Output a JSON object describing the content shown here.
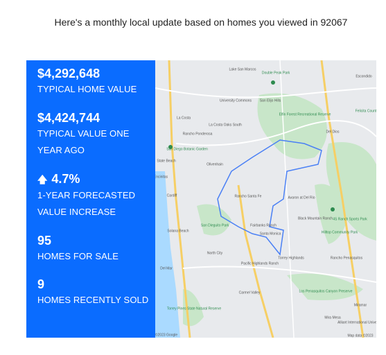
{
  "heading": "Here's a monthly local update based on homes you viewed in 92067",
  "stats": [
    {
      "value": "$4,292,648",
      "label": "TYPICAL HOME VALUE"
    },
    {
      "value": "$4,424,744",
      "label": "TYPICAL VALUE ONE YEAR AGO"
    },
    {
      "value": "4.7%",
      "label": "1-YEAR FORECASTED VALUE INCREASE"
    },
    {
      "value": "95",
      "label": "HOMES FOR SALE"
    },
    {
      "value": "9",
      "label": "HOMES RECENTLY SOLD"
    }
  ],
  "map": {
    "labels": [
      "Lake San Marcos",
      "Double Peak Park",
      "Escondido",
      "University Commons",
      "San Elijo Hills",
      "Elfin Forest Recreational Reserve",
      "Felicita County Park",
      "La Costa",
      "La Costa Oaks South",
      "Rancho Ponderosa",
      "Del Dios",
      "San Diego Botanic Garden",
      "Olivenhain",
      "State Beach",
      "Encinitas",
      "Rancho Santa Fe",
      "Avaron at Del Rio",
      "Cardiff",
      "San Dieguito Park",
      "Fairbanks Ranch",
      "Black Mountain Ranch",
      "4S Ranch Sports Park",
      "Solana Beach",
      "Hilltop Community Park",
      "Santa Monica",
      "North City",
      "Del Mar",
      "Pacific Highlands Ranch",
      "Torrey Highlands",
      "Rancho Penasquitos",
      "Carmel Valley",
      "Los Penasquitos Canyon Preserve",
      "Torrey Pines State Natural Reserve",
      "Mira Mesa",
      "Miramar",
      "Alliant International University",
      "©2023 Google",
      "Map data ©2023"
    ]
  }
}
